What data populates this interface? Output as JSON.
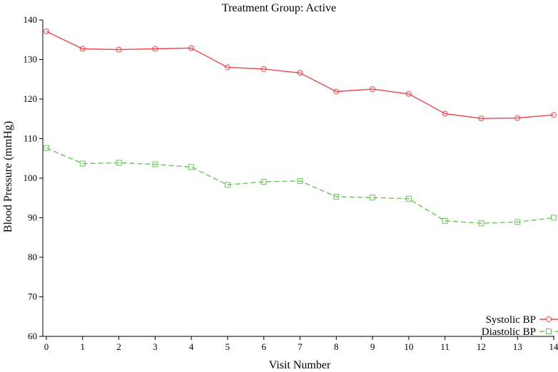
{
  "chart_data": {
    "type": "line",
    "title": "Treatment Group: Active",
    "xlabel": "Visit Number",
    "ylabel": "Blood Pressure (mmHg)",
    "xlim": [
      0,
      14
    ],
    "ylim": [
      60,
      140
    ],
    "x_ticks": [
      0,
      1,
      2,
      3,
      4,
      5,
      6,
      7,
      8,
      9,
      10,
      11,
      12,
      13,
      14
    ],
    "y_ticks": [
      60,
      70,
      80,
      90,
      100,
      110,
      120,
      130,
      140
    ],
    "grid": false,
    "legend_position": "bottom-right",
    "x": [
      0,
      1,
      2,
      3,
      4,
      5,
      6,
      7,
      8,
      9,
      10,
      11,
      12,
      13,
      14
    ],
    "series": [
      {
        "name": "Systolic BP",
        "color": "#e8474b",
        "line_style": "solid",
        "marker": "circle",
        "values": [
          137.1,
          132.7,
          132.5,
          132.7,
          132.9,
          128.0,
          127.6,
          126.6,
          121.9,
          122.5,
          121.3,
          116.3,
          115.1,
          115.2,
          116.0
        ]
      },
      {
        "name": "Diastolic BP",
        "color": "#6cc45a",
        "line_style": "dashed",
        "marker": "square",
        "values": [
          107.6,
          103.7,
          103.9,
          103.5,
          102.8,
          98.3,
          99.1,
          99.3,
          95.3,
          95.1,
          94.8,
          89.2,
          88.6,
          88.9,
          90.0
        ]
      }
    ]
  }
}
